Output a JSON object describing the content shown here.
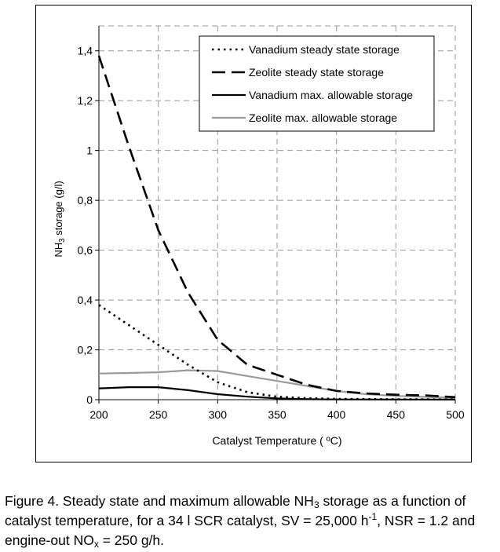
{
  "chart_data": {
    "type": "line",
    "xlabel": "Catalyst Temperature ( ºC)",
    "ylabel_parts": [
      "NH",
      "3",
      " storage (g/l)"
    ],
    "xlim": [
      200,
      500
    ],
    "ylim": [
      0,
      1.5
    ],
    "x_ticks": [
      200,
      250,
      300,
      350,
      400,
      450,
      500
    ],
    "x_tick_labels": [
      "200",
      "250",
      "300",
      "350",
      "400",
      "450",
      "500"
    ],
    "y_ticks": [
      0,
      0.2,
      0.4,
      0.6,
      0.8,
      1.0,
      1.2,
      1.4
    ],
    "y_tick_labels": [
      "0",
      "0,2",
      "0,4",
      "0,6",
      "0,8",
      "1",
      "1,2",
      "1,4"
    ],
    "grid": true,
    "legend_position": "top-right",
    "series": [
      {
        "name": "Vanadium steady state storage",
        "style": "dotted",
        "color": "#000000",
        "x": [
          200,
          225,
          250,
          275,
          300,
          325,
          350,
          375,
          400,
          450,
          500
        ],
        "y": [
          0.38,
          0.3,
          0.22,
          0.14,
          0.07,
          0.03,
          0.012,
          0.006,
          0.003,
          0.0015,
          0.001
        ]
      },
      {
        "name": "Zeolite steady state storage",
        "style": "dashed",
        "color": "#000000",
        "x": [
          200,
          225,
          250,
          275,
          300,
          325,
          350,
          375,
          400,
          425,
          450,
          475,
          500
        ],
        "y": [
          1.38,
          1.02,
          0.68,
          0.43,
          0.24,
          0.14,
          0.1,
          0.06,
          0.035,
          0.025,
          0.02,
          0.017,
          0.01
        ]
      },
      {
        "name": "Vanadium max. allowable storage",
        "style": "solid",
        "color": "#000000",
        "x": [
          200,
          225,
          250,
          275,
          300,
          325,
          350,
          375,
          400,
          450,
          500
        ],
        "y": [
          0.045,
          0.05,
          0.05,
          0.038,
          0.022,
          0.012,
          0.005,
          0.002,
          0.001,
          0.0005,
          0.0003
        ]
      },
      {
        "name": "Zeolite max. allowable storage",
        "style": "solid",
        "color": "#9a9a9a",
        "x": [
          200,
          225,
          250,
          275,
          300,
          325,
          350,
          375,
          400,
          425,
          450,
          475,
          500
        ],
        "y": [
          0.105,
          0.107,
          0.11,
          0.118,
          0.115,
          0.095,
          0.075,
          0.055,
          0.035,
          0.022,
          0.015,
          0.011,
          0.008
        ]
      }
    ]
  },
  "caption": {
    "p1": "Figure 4. Steady state and maximum allowable NH",
    "p1_sub": "3",
    "p2": " storage as a function of catalyst temperature, for a 34 l SCR catalyst, SV = 25,000 h",
    "p2_sup": "-1",
    "p3": ", NSR = 1.2 and engine-out NO",
    "p3_sub": "x",
    "p4": " = 250 g/h."
  }
}
